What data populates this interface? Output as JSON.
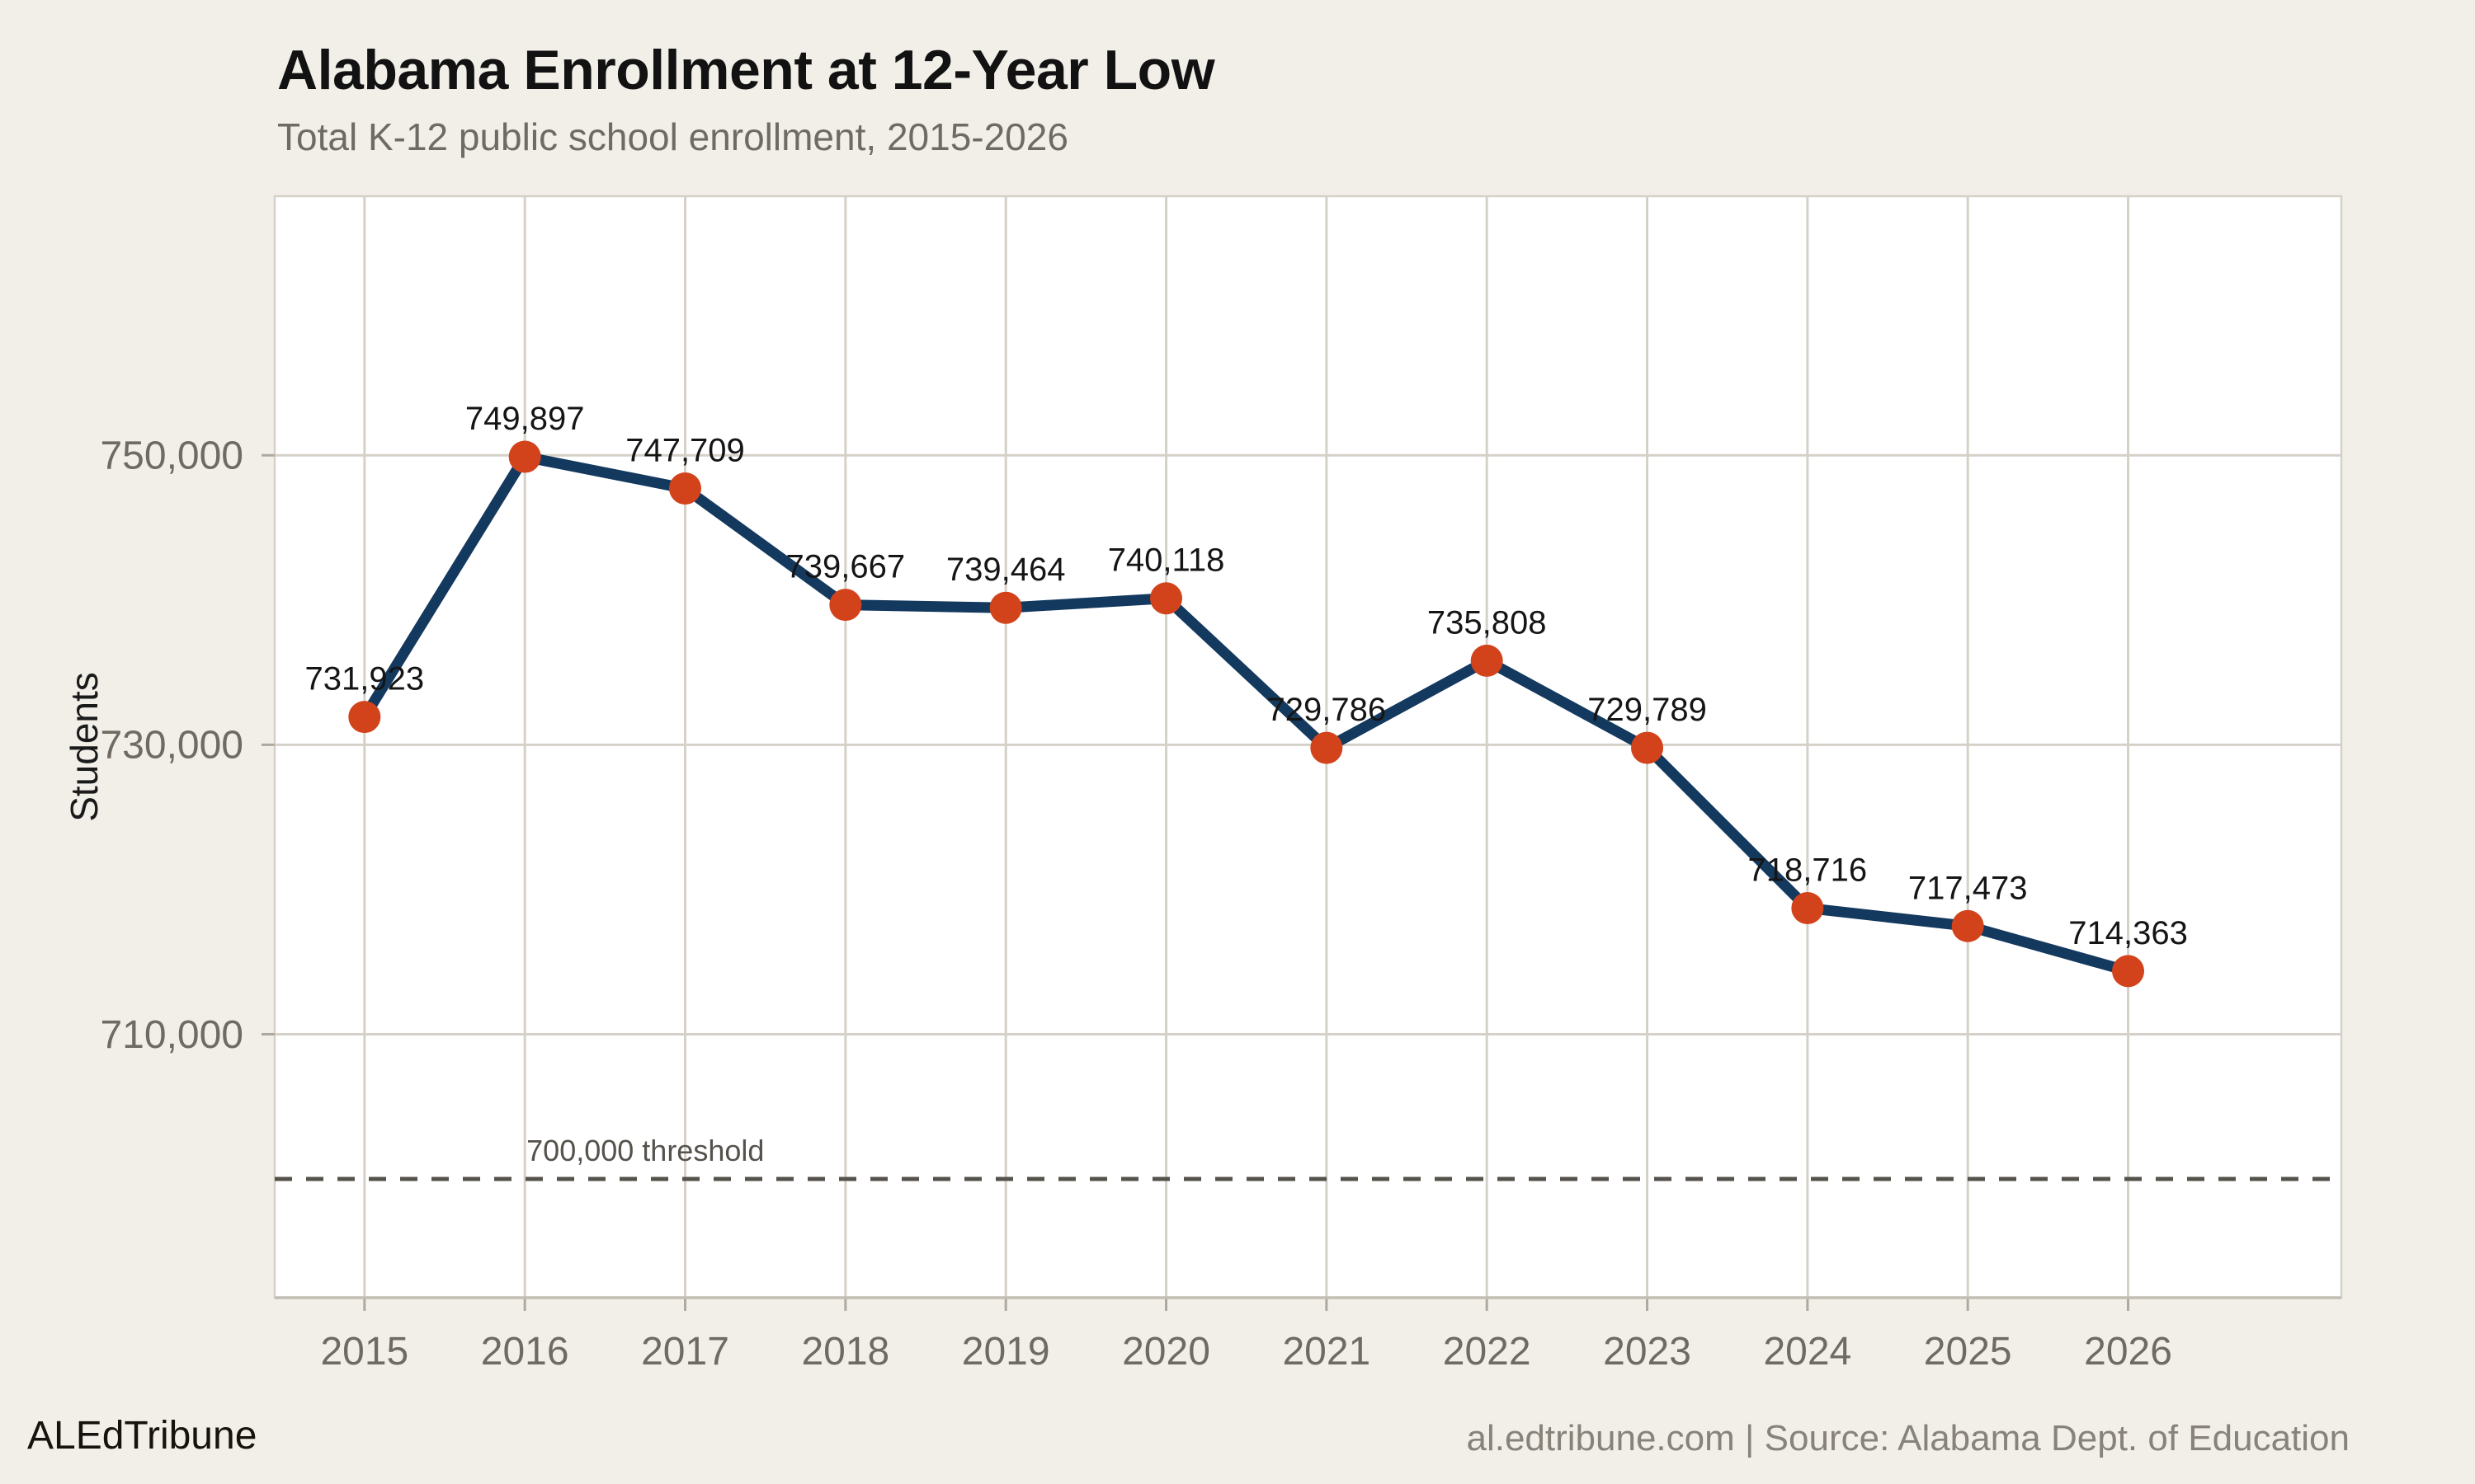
{
  "title": "Alabama Enrollment at 12-Year Low",
  "subtitle": "Total K-12 public school enrollment, 2015-2026",
  "footer": {
    "left": "ALEdTribune",
    "right": "al.edtribune.com | Source: Alabama Dept. of Education"
  },
  "colors": {
    "page_bg": "#F2EFE9",
    "plot_bg": "#FFFFFF",
    "grid": "#D6D1C8",
    "axis_line": "#C3BEB4",
    "tick": "#AEA99F",
    "line": "#14395E",
    "point": "#D2431C",
    "threshold": "#55524C",
    "title_text": "#121212",
    "subtitle_text": "#6F6B64",
    "axis_text": "#6F6B64",
    "value_text": "#151515",
    "ylabel_text": "#1A1A1A",
    "footer_left_text": "#16130E",
    "footer_right_text": "#87837B"
  },
  "chart_data": {
    "type": "line",
    "title": "Alabama Enrollment at 12-Year Low",
    "subtitle": "Total K-12 public school enrollment, 2015-2026",
    "x": [
      "2015",
      "2016",
      "2017",
      "2018",
      "2019",
      "2020",
      "2021",
      "2022",
      "2023",
      "2024",
      "2025",
      "2026"
    ],
    "series": [
      {
        "name": "enrollment",
        "values": [
          731923,
          749897,
          747709,
          739667,
          739464,
          740118,
          729786,
          735808,
          729789,
          718716,
          717473,
          714363
        ]
      }
    ],
    "point_labels": [
      "731,923",
      "749,897",
      "747,709",
      "739,667",
      "739,464",
      "740,118",
      "729,786",
      "735,808",
      "729,789",
      "718,716",
      "717,473",
      "714,363"
    ],
    "ylabel": "Students",
    "xlabel": "",
    "yticks": [
      {
        "value": 750000,
        "label": "750,000"
      },
      {
        "value": 730000,
        "label": "730,000"
      },
      {
        "value": 710000,
        "label": "710,000"
      }
    ],
    "ylim": [
      691800,
      767900
    ],
    "xlim": [
      2014.44,
      2027.33
    ],
    "threshold": {
      "value": 700000,
      "label": "700,000 threshold"
    },
    "grid": true,
    "legend": "none"
  }
}
